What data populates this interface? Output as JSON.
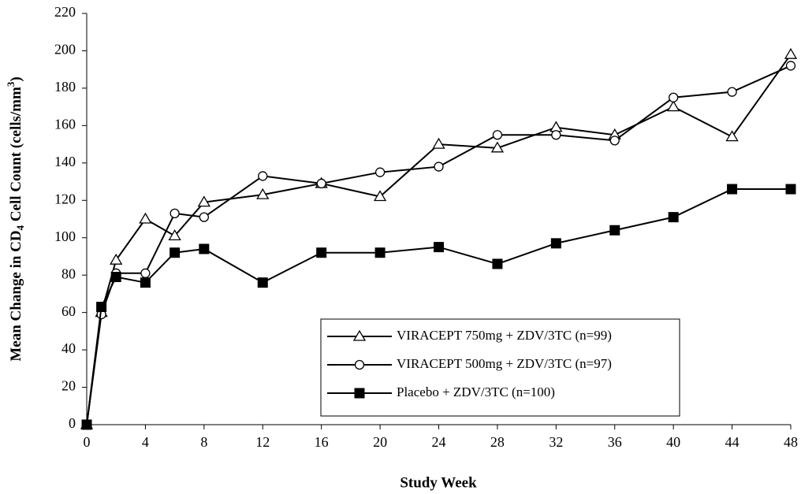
{
  "chart_data": {
    "type": "line",
    "xlabel": "Study Week",
    "ylabel": [
      "Mean Change in CD",
      "4",
      " Cell Count (cells/mm",
      "3",
      ")"
    ],
    "x": [
      0,
      1,
      2,
      4,
      6,
      8,
      12,
      16,
      20,
      24,
      28,
      32,
      36,
      40,
      44,
      48
    ],
    "series": [
      {
        "name": "VIRACEPT 750mg + ZDV/3TC (n=99)",
        "color": "#000000",
        "marker": "triangle",
        "values": [
          0,
          60,
          88,
          110,
          101,
          119,
          123,
          129,
          122,
          150,
          148,
          159,
          155,
          170,
          154,
          198
        ]
      },
      {
        "name": "VIRACEPT 500mg + ZDV/3TC (n=97)",
        "color": "#000000",
        "marker": "circle",
        "values": [
          0,
          59,
          81,
          81,
          113,
          111,
          133,
          129,
          135,
          138,
          155,
          155,
          152,
          175,
          178,
          192
        ]
      },
      {
        "name": "Placebo + ZDV/3TC (n=100)",
        "color": "#000000",
        "marker": "square",
        "values": [
          0,
          63,
          79,
          76,
          92,
          94,
          76,
          92,
          92,
          95,
          86,
          97,
          104,
          111,
          126,
          126
        ]
      }
    ],
    "xlim": [
      0,
      48
    ],
    "xticks": [
      0,
      4,
      8,
      12,
      16,
      20,
      24,
      28,
      32,
      36,
      40,
      44,
      48
    ],
    "ylim": [
      0,
      220
    ],
    "yticks": [
      0,
      20,
      40,
      60,
      80,
      100,
      120,
      140,
      160,
      180,
      200,
      220
    ],
    "grid": false,
    "legend": "lower-right"
  }
}
